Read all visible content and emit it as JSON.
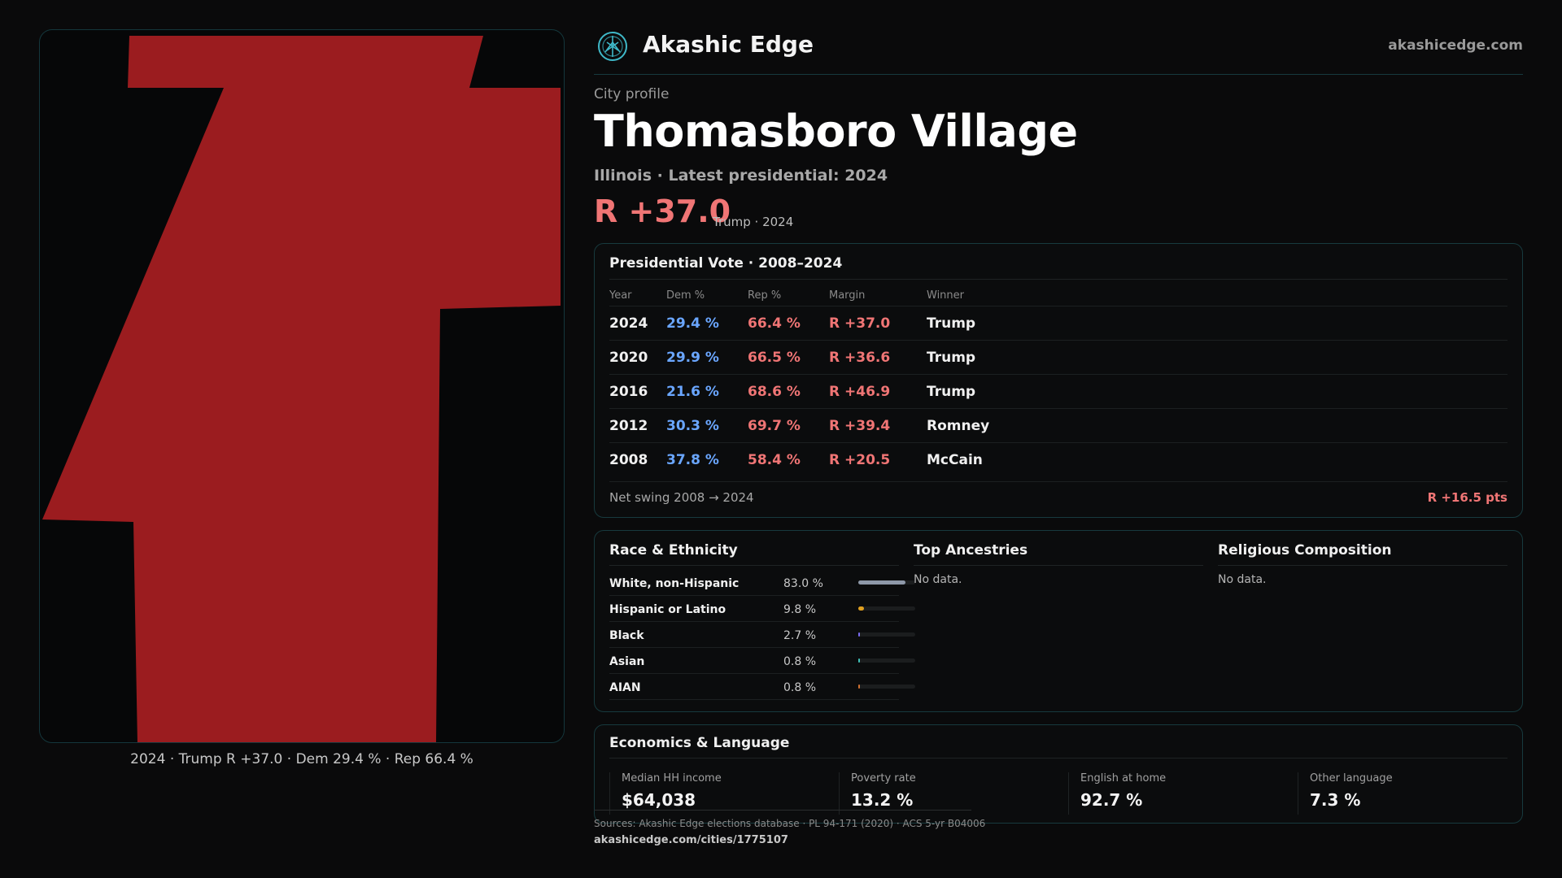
{
  "brand": {
    "name": "Akashic Edge",
    "site": "akashicedge.com"
  },
  "page": {
    "kicker": "City profile",
    "title": "Thomasboro Village",
    "subline": "Illinois · Latest presidential: 2024",
    "margin_big": "R +37.0",
    "margin_note": "Trump · 2024"
  },
  "map": {
    "caption": "2024 · Trump R +37.0 · Dem 29.4 % · Rep 66.4 %",
    "fill_color": "#9b1c1f"
  },
  "vote": {
    "title": "Presidential Vote · 2008–2024",
    "headers": {
      "year": "Year",
      "dem": "Dem %",
      "rep": "Rep %",
      "margin": "Margin",
      "winner": "Winner"
    },
    "rows": [
      {
        "year": "2024",
        "dem": "29.4 %",
        "rep": "66.4 %",
        "margin": "R +37.0",
        "winner": "Trump"
      },
      {
        "year": "2020",
        "dem": "29.9 %",
        "rep": "66.5 %",
        "margin": "R +36.6",
        "winner": "Trump"
      },
      {
        "year": "2016",
        "dem": "21.6 %",
        "rep": "68.6 %",
        "margin": "R +46.9",
        "winner": "Trump"
      },
      {
        "year": "2012",
        "dem": "30.3 %",
        "rep": "69.7 %",
        "margin": "R +39.4",
        "winner": "Romney"
      },
      {
        "year": "2008",
        "dem": "37.8 %",
        "rep": "58.4 %",
        "margin": "R +20.5",
        "winner": "McCain"
      }
    ],
    "swing_label": "Net swing 2008 → 2024",
    "swing_value": "R +16.5 pts"
  },
  "demographics": {
    "race_title": "Race & Ethnicity",
    "race": [
      {
        "label": "White, non-Hispanic",
        "pct": "83.0 %",
        "value": 83.0,
        "color": "#8e98a8"
      },
      {
        "label": "Hispanic or Latino",
        "pct": "9.8 %",
        "value": 9.8,
        "color": "#e0a020"
      },
      {
        "label": "Black",
        "pct": "2.7 %",
        "value": 2.7,
        "color": "#7a6cf0"
      },
      {
        "label": "Asian",
        "pct": "0.8 %",
        "value": 0.8,
        "color": "#3fc0b8"
      },
      {
        "label": "AIAN",
        "pct": "0.8 %",
        "value": 0.8,
        "color": "#d07030"
      }
    ],
    "ancestry_title": "Top Ancestries",
    "ancestry_empty": "No data.",
    "religion_title": "Religious Composition",
    "religion_empty": "No data."
  },
  "economics": {
    "title": "Economics & Language",
    "cells": [
      {
        "label": "Median HH income",
        "value": "$64,038"
      },
      {
        "label": "Poverty rate",
        "value": "13.2 %"
      },
      {
        "label": "English at home",
        "value": "92.7 %"
      },
      {
        "label": "Other language",
        "value": "7.3 %"
      }
    ]
  },
  "footer": {
    "sources": "Sources: Akashic Edge elections database · PL 94-171 (2020) · ACS 5-yr B04006",
    "url": "akashicedge.com/cities/1775107"
  }
}
